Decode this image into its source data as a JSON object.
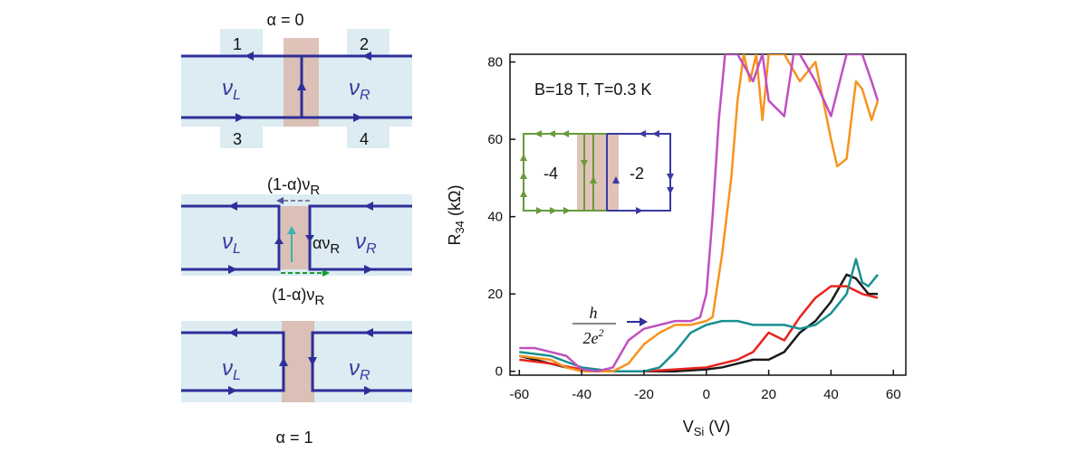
{
  "diagram": {
    "top": {
      "title": "α = 0",
      "contacts": [
        "1",
        "2",
        "3",
        "4"
      ],
      "left": {
        "main": "ν",
        "sub": "L"
      },
      "right": {
        "main": "ν",
        "sub": "R"
      }
    },
    "middle": {
      "upper": {
        "main": "(1-α)ν",
        "sub": "R"
      },
      "inner": {
        "main": "αν",
        "sub": "R"
      },
      "lower": {
        "main": "(1-α)ν",
        "sub": "R"
      },
      "left": {
        "main": "ν",
        "sub": "L"
      },
      "right": {
        "main": "ν",
        "sub": "R"
      }
    },
    "bottom": {
      "title": "α = 1",
      "left": {
        "main": "ν",
        "sub": "L"
      },
      "right": {
        "main": "ν",
        "sub": "R"
      }
    }
  },
  "chart_data": {
    "type": "line",
    "annotation": "B=18 T, T=0.3 K",
    "arrow_label": {
      "numerator": "h",
      "denominator": "2e",
      "sup": "2"
    },
    "inset_labels": [
      "-4",
      "-2"
    ],
    "x_label": {
      "main": "V",
      "sub": "Si",
      "unit": " (V)"
    },
    "y_label": {
      "main": "R",
      "sub": "34",
      "unit": " (kΩ)"
    },
    "xlim": [
      -63,
      64
    ],
    "ylim": [
      -1,
      82
    ],
    "xticks": [
      -60,
      -40,
      -20,
      0,
      20,
      40,
      60
    ],
    "yticks": [
      0,
      20,
      40,
      60,
      80
    ],
    "series": [
      {
        "color": "#1a1a1a",
        "x": [
          -60,
          -55,
          -50,
          -45,
          -40,
          -30,
          -20,
          -10,
          0,
          5,
          10,
          15,
          20,
          25,
          30,
          35,
          40,
          45,
          48,
          50,
          52,
          55
        ],
        "values": [
          4,
          3,
          2,
          1,
          0.5,
          0,
          0,
          0,
          0.5,
          1,
          2,
          3,
          3,
          5,
          10,
          13,
          18,
          25,
          24,
          22,
          20,
          20
        ]
      },
      {
        "color": "#e8231e",
        "x": [
          -60,
          -50,
          -40,
          -30,
          -20,
          -10,
          0,
          10,
          15,
          20,
          25,
          30,
          35,
          40,
          45,
          50,
          55
        ],
        "values": [
          3,
          2,
          0.5,
          0,
          0,
          0.5,
          1,
          3,
          5,
          10,
          8,
          14,
          19,
          22,
          22,
          20,
          19
        ]
      },
      {
        "color": "#1a9090",
        "x": [
          -60,
          -50,
          -40,
          -30,
          -20,
          -15,
          -10,
          -5,
          0,
          5,
          10,
          15,
          20,
          25,
          30,
          35,
          40,
          45,
          48,
          50,
          52,
          55
        ],
        "values": [
          5,
          4,
          1,
          0,
          0,
          1,
          5,
          10,
          12,
          13,
          13,
          12,
          12,
          12,
          11,
          12,
          15,
          20,
          29,
          23,
          22,
          25
        ]
      },
      {
        "color": "#f7941d",
        "x": [
          -60,
          -50,
          -45,
          -40,
          -30,
          -25,
          -20,
          -15,
          -10,
          -5,
          0,
          2,
          5,
          8,
          10,
          12,
          14,
          16,
          18,
          20,
          25,
          30,
          35,
          40,
          42,
          45,
          48,
          50,
          53,
          55
        ],
        "values": [
          4,
          3,
          1,
          0,
          0,
          2,
          7,
          10,
          12,
          12,
          13,
          14,
          30,
          50,
          70,
          82,
          75,
          82,
          65,
          82,
          82,
          75,
          80,
          60,
          53,
          55,
          75,
          73,
          65,
          70
        ]
      },
      {
        "color": "#c050c0",
        "x": [
          -60,
          -55,
          -50,
          -45,
          -40,
          -35,
          -30,
          -25,
          -20,
          -15,
          -10,
          -5,
          -2,
          0,
          2,
          4,
          6,
          10,
          15,
          18,
          20,
          25,
          28,
          30,
          35,
          40,
          45,
          50,
          53,
          55
        ],
        "values": [
          6,
          6,
          5,
          4,
          0.5,
          0,
          1,
          8,
          11,
          12,
          13,
          13,
          14,
          20,
          40,
          65,
          82,
          82,
          75,
          82,
          70,
          66,
          82,
          82,
          75,
          66,
          82,
          82,
          75,
          70
        ]
      }
    ]
  }
}
